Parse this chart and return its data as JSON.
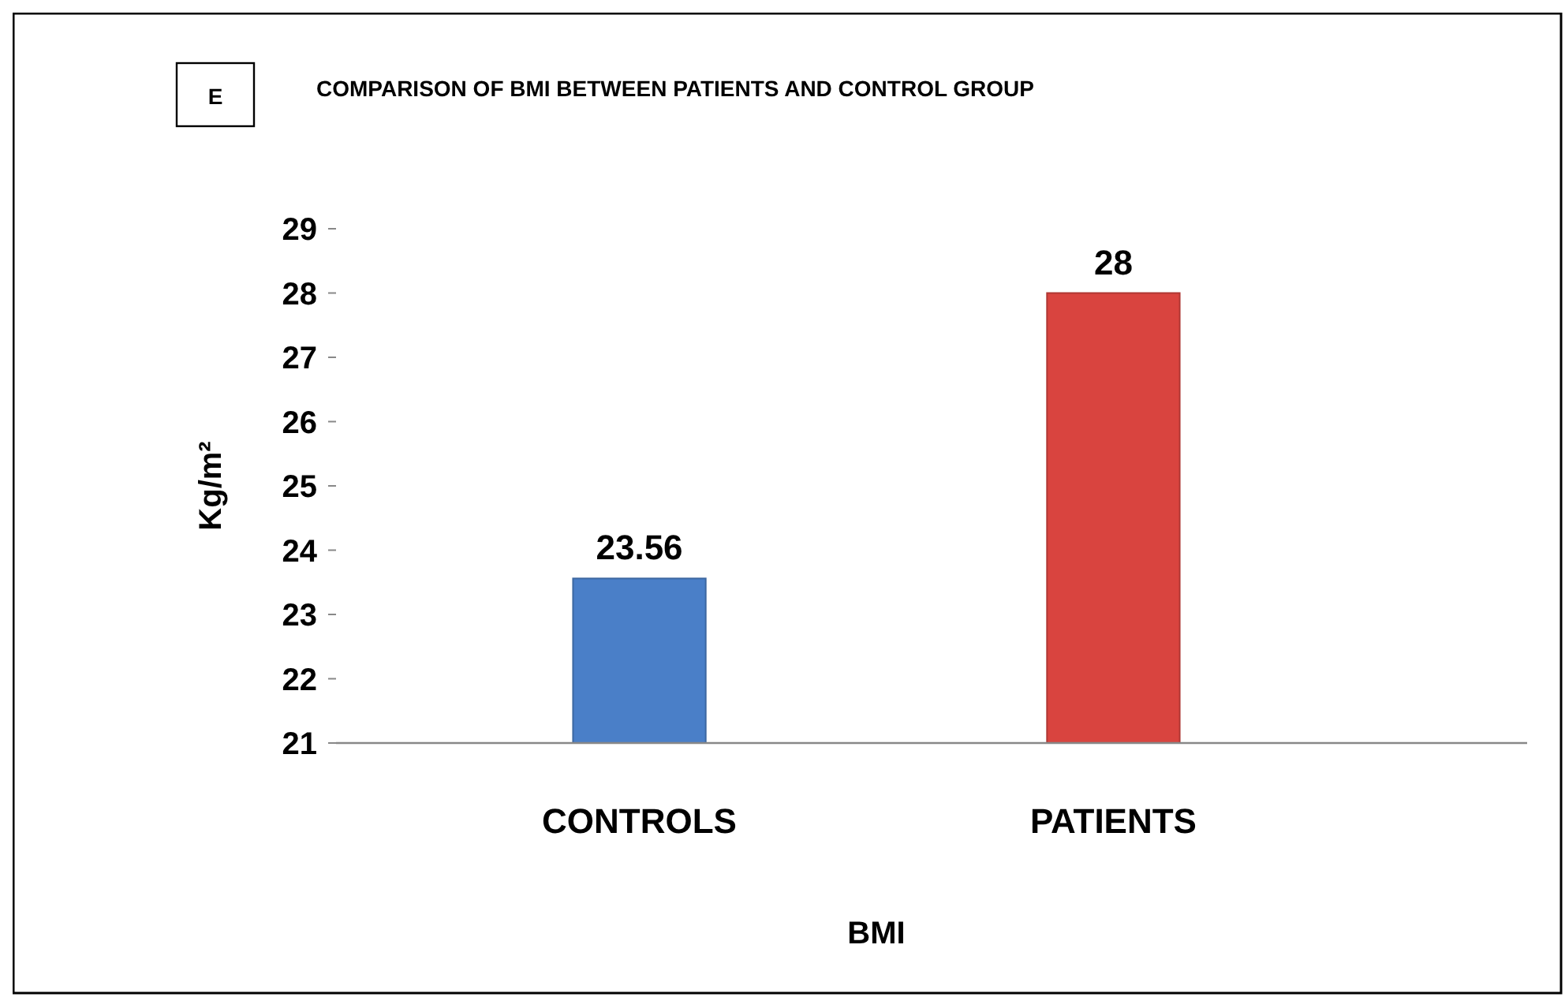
{
  "chart_data": {
    "type": "bar",
    "title": "COMPARISON OF BMI BETWEEN PATIENTS AND CONTROL GROUP",
    "annotations": [
      "E"
    ],
    "xlabel": "BMI",
    "ylabel": "Kg/m²",
    "categories": [
      "CONTROLS",
      "PATIENTS"
    ],
    "values": [
      23.56,
      28
    ],
    "colors": [
      "#4a7fc8",
      "#d9443f"
    ],
    "ylim": [
      21,
      29
    ],
    "yticks": [
      21,
      22,
      23,
      24,
      25,
      26,
      27,
      28,
      29
    ],
    "data_labels": true,
    "grid": false
  }
}
